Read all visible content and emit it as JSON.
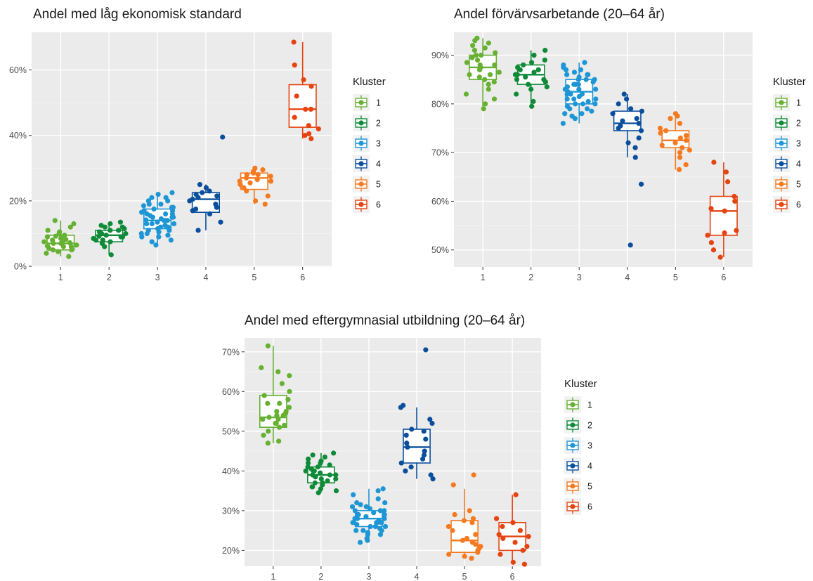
{
  "legend_title": "Kluster",
  "cluster_colors": [
    "#66b032",
    "#0f8a38",
    "#1e96d6",
    "#0a4f9c",
    "#f57a1f",
    "#e5430f"
  ],
  "chart_data": [
    {
      "type": "boxplot",
      "title": "Andel med låg ekonomisk standard",
      "xlabel": "",
      "ylabel": "",
      "categories": [
        "1",
        "2",
        "3",
        "4",
        "5",
        "6"
      ],
      "ylim": [
        -0.002,
        0.715
      ],
      "yticks": [
        0,
        0.2,
        0.4,
        0.6
      ],
      "ytick_labels": [
        "0%",
        "20%",
        "40%",
        "60%"
      ],
      "grid": true,
      "legend": "right",
      "series": [
        {
          "name": "1",
          "box": {
            "whislo": 0.03,
            "q1": 0.05,
            "med": 0.07,
            "q3": 0.095,
            "whishi": 0.14
          },
          "points": [
            0.03,
            0.04,
            0.045,
            0.05,
            0.055,
            0.06,
            0.062,
            0.065,
            0.07,
            0.072,
            0.075,
            0.08,
            0.082,
            0.085,
            0.09,
            0.092,
            0.095,
            0.1,
            0.105,
            0.11,
            0.12,
            0.13,
            0.14,
            0.07,
            0.06,
            0.05,
            0.08,
            0.09
          ]
        },
        {
          "name": "2",
          "box": {
            "whislo": 0.035,
            "q1": 0.075,
            "med": 0.095,
            "q3": 0.11,
            "whishi": 0.135
          },
          "points": [
            0.035,
            0.06,
            0.07,
            0.075,
            0.08,
            0.085,
            0.09,
            0.092,
            0.095,
            0.1,
            0.105,
            0.11,
            0.115,
            0.12,
            0.125,
            0.13,
            0.135,
            0.08,
            0.09,
            0.1,
            0.11,
            0.12
          ]
        },
        {
          "name": "3",
          "box": {
            "whislo": 0.065,
            "q1": 0.115,
            "med": 0.14,
            "q3": 0.175,
            "whishi": 0.225
          },
          "points": [
            0.065,
            0.075,
            0.08,
            0.09,
            0.095,
            0.1,
            0.105,
            0.11,
            0.115,
            0.12,
            0.125,
            0.13,
            0.135,
            0.14,
            0.142,
            0.145,
            0.15,
            0.155,
            0.16,
            0.165,
            0.17,
            0.175,
            0.18,
            0.185,
            0.19,
            0.2,
            0.21,
            0.22,
            0.225,
            0.13,
            0.14,
            0.15,
            0.16,
            0.12,
            0.11,
            0.17,
            0.18,
            0.19,
            0.1,
            0.09,
            0.14,
            0.15,
            0.16,
            0.13,
            0.12,
            0.2,
            0.21
          ]
        },
        {
          "name": "4",
          "box": {
            "whislo": 0.11,
            "q1": 0.165,
            "med": 0.205,
            "q3": 0.225,
            "whishi": 0.25
          },
          "points": [
            0.11,
            0.135,
            0.16,
            0.17,
            0.175,
            0.18,
            0.19,
            0.2,
            0.205,
            0.21,
            0.215,
            0.22,
            0.225,
            0.23,
            0.24,
            0.25,
            0.395
          ]
        },
        {
          "name": "5",
          "box": {
            "whislo": 0.19,
            "q1": 0.235,
            "med": 0.27,
            "q3": 0.285,
            "whishi": 0.3
          },
          "points": [
            0.19,
            0.2,
            0.215,
            0.23,
            0.24,
            0.25,
            0.255,
            0.26,
            0.265,
            0.27,
            0.275,
            0.28,
            0.285,
            0.29,
            0.295,
            0.3,
            0.26,
            0.28
          ]
        },
        {
          "name": "6",
          "box": {
            "whislo": 0.39,
            "q1": 0.425,
            "med": 0.48,
            "q3": 0.555,
            "whishi": 0.685
          },
          "points": [
            0.39,
            0.4,
            0.405,
            0.42,
            0.43,
            0.455,
            0.48,
            0.48,
            0.52,
            0.55,
            0.57,
            0.615,
            0.685
          ]
        }
      ]
    },
    {
      "type": "boxplot",
      "title": "Andel förvärvsarbetande (20–64 år)",
      "xlabel": "",
      "ylabel": "",
      "categories": [
        "1",
        "2",
        "3",
        "4",
        "5",
        "6"
      ],
      "ylim": [
        0.465,
        0.947
      ],
      "yticks": [
        0.5,
        0.6,
        0.7,
        0.8,
        0.9
      ],
      "ytick_labels": [
        "50%",
        "60%",
        "70%",
        "80%",
        "90%"
      ],
      "grid": true,
      "legend": "right",
      "series": [
        {
          "name": "1",
          "box": {
            "whislo": 0.79,
            "q1": 0.85,
            "med": 0.875,
            "q3": 0.9,
            "whishi": 0.935
          },
          "points": [
            0.79,
            0.8,
            0.81,
            0.82,
            0.83,
            0.84,
            0.845,
            0.85,
            0.855,
            0.86,
            0.865,
            0.87,
            0.875,
            0.88,
            0.885,
            0.89,
            0.895,
            0.9,
            0.905,
            0.91,
            0.915,
            0.92,
            0.925,
            0.93,
            0.935,
            0.86,
            0.88,
            0.9
          ]
        },
        {
          "name": "2",
          "box": {
            "whislo": 0.795,
            "q1": 0.84,
            "med": 0.86,
            "q3": 0.88,
            "whishi": 0.91
          },
          "points": [
            0.795,
            0.805,
            0.82,
            0.83,
            0.835,
            0.84,
            0.845,
            0.85,
            0.855,
            0.86,
            0.865,
            0.87,
            0.875,
            0.88,
            0.885,
            0.89,
            0.9,
            0.91,
            0.86,
            0.85,
            0.87
          ]
        },
        {
          "name": "3",
          "box": {
            "whislo": 0.76,
            "q1": 0.8,
            "med": 0.825,
            "q3": 0.85,
            "whishi": 0.885
          },
          "points": [
            0.76,
            0.77,
            0.775,
            0.78,
            0.785,
            0.79,
            0.795,
            0.8,
            0.805,
            0.81,
            0.815,
            0.82,
            0.825,
            0.83,
            0.835,
            0.84,
            0.845,
            0.85,
            0.855,
            0.86,
            0.865,
            0.87,
            0.875,
            0.88,
            0.885,
            0.82,
            0.83,
            0.84,
            0.81,
            0.8,
            0.79,
            0.85,
            0.86,
            0.87,
            0.78,
            0.82,
            0.83,
            0.84,
            0.85,
            0.81,
            0.8,
            0.86
          ]
        },
        {
          "name": "4",
          "box": {
            "whislo": 0.69,
            "q1": 0.745,
            "med": 0.76,
            "q3": 0.785,
            "whishi": 0.82
          },
          "points": [
            0.51,
            0.635,
            0.69,
            0.71,
            0.72,
            0.73,
            0.745,
            0.75,
            0.755,
            0.76,
            0.765,
            0.77,
            0.78,
            0.785,
            0.79,
            0.8,
            0.81,
            0.82
          ]
        },
        {
          "name": "5",
          "box": {
            "whislo": 0.665,
            "q1": 0.71,
            "med": 0.725,
            "q3": 0.745,
            "whishi": 0.78
          },
          "points": [
            0.665,
            0.675,
            0.69,
            0.7,
            0.705,
            0.71,
            0.715,
            0.72,
            0.725,
            0.73,
            0.735,
            0.74,
            0.745,
            0.75,
            0.76,
            0.77,
            0.775,
            0.78
          ]
        },
        {
          "name": "6",
          "box": {
            "whislo": 0.485,
            "q1": 0.53,
            "med": 0.58,
            "q3": 0.61,
            "whishi": 0.68
          },
          "points": [
            0.485,
            0.5,
            0.515,
            0.53,
            0.535,
            0.54,
            0.58,
            0.585,
            0.6,
            0.61,
            0.64,
            0.66,
            0.68
          ]
        }
      ]
    },
    {
      "type": "boxplot",
      "title": "Andel med eftergymnasial utbildning (20–64 år)",
      "xlabel": "",
      "ylabel": "",
      "categories": [
        "1",
        "2",
        "3",
        "4",
        "5",
        "6"
      ],
      "ylim": [
        0.16,
        0.735
      ],
      "yticks": [
        0.2,
        0.3,
        0.4,
        0.5,
        0.6,
        0.7
      ],
      "ytick_labels": [
        "20%",
        "30%",
        "40%",
        "50%",
        "60%",
        "70%"
      ],
      "grid": true,
      "legend": "right",
      "series": [
        {
          "name": "1",
          "box": {
            "whislo": 0.47,
            "q1": 0.51,
            "med": 0.535,
            "q3": 0.59,
            "whishi": 0.715
          },
          "points": [
            0.47,
            0.475,
            0.49,
            0.5,
            0.51,
            0.515,
            0.52,
            0.53,
            0.535,
            0.54,
            0.545,
            0.55,
            0.56,
            0.57,
            0.58,
            0.59,
            0.6,
            0.62,
            0.64,
            0.65,
            0.66,
            0.715,
            0.53,
            0.55,
            0.57,
            0.52,
            0.54
          ]
        },
        {
          "name": "2",
          "box": {
            "whislo": 0.345,
            "q1": 0.37,
            "med": 0.39,
            "q3": 0.41,
            "whishi": 0.445
          },
          "points": [
            0.345,
            0.35,
            0.355,
            0.36,
            0.365,
            0.37,
            0.375,
            0.38,
            0.385,
            0.39,
            0.395,
            0.4,
            0.405,
            0.41,
            0.415,
            0.42,
            0.425,
            0.43,
            0.435,
            0.44,
            0.445,
            0.39,
            0.4,
            0.38,
            0.37,
            0.41,
            0.42,
            0.36,
            0.39,
            0.4
          ]
        },
        {
          "name": "3",
          "box": {
            "whislo": 0.22,
            "q1": 0.26,
            "med": 0.28,
            "q3": 0.3,
            "whishi": 0.355
          },
          "points": [
            0.22,
            0.225,
            0.23,
            0.24,
            0.245,
            0.25,
            0.255,
            0.26,
            0.265,
            0.27,
            0.275,
            0.28,
            0.285,
            0.29,
            0.295,
            0.3,
            0.305,
            0.31,
            0.315,
            0.32,
            0.33,
            0.34,
            0.35,
            0.355,
            0.27,
            0.28,
            0.29,
            0.26,
            0.25,
            0.3,
            0.31,
            0.28,
            0.27,
            0.29,
            0.24,
            0.26,
            0.28,
            0.3,
            0.32,
            0.25,
            0.27
          ]
        },
        {
          "name": "4",
          "box": {
            "whislo": 0.38,
            "q1": 0.42,
            "med": 0.46,
            "q3": 0.505,
            "whishi": 0.56
          },
          "points": [
            0.38,
            0.39,
            0.4,
            0.41,
            0.42,
            0.43,
            0.44,
            0.45,
            0.46,
            0.47,
            0.48,
            0.49,
            0.5,
            0.505,
            0.52,
            0.53,
            0.56,
            0.565,
            0.705
          ]
        },
        {
          "name": "5",
          "box": {
            "whislo": 0.18,
            "q1": 0.195,
            "med": 0.225,
            "q3": 0.275,
            "whishi": 0.355
          },
          "points": [
            0.18,
            0.185,
            0.19,
            0.195,
            0.2,
            0.205,
            0.21,
            0.215,
            0.22,
            0.225,
            0.23,
            0.24,
            0.25,
            0.26,
            0.27,
            0.275,
            0.28,
            0.29,
            0.3,
            0.365,
            0.39
          ]
        },
        {
          "name": "6",
          "box": {
            "whislo": 0.165,
            "q1": 0.2,
            "med": 0.235,
            "q3": 0.27,
            "whishi": 0.34
          },
          "points": [
            0.165,
            0.17,
            0.19,
            0.2,
            0.21,
            0.22,
            0.23,
            0.235,
            0.24,
            0.25,
            0.26,
            0.27,
            0.28,
            0.34
          ]
        }
      ]
    }
  ]
}
